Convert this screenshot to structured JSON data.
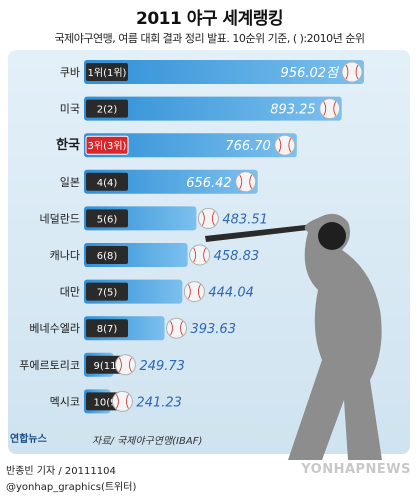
{
  "header": {
    "title": "2011 야구 세계랭킹",
    "subtitle": "국제야구연맹, 여름 대회 결과 정리 발표. 10순위 기준, ( ):2010년 순위"
  },
  "colors": {
    "bar": "#2f8fd6",
    "bar_light": "#7cc0ee",
    "rank_box": "#2a2a2a",
    "highlight_box": "#d9262a",
    "value_text": "#ffffff",
    "value_text_dark": "#2d68b3",
    "panel": "#dbeaf4"
  },
  "chart_data": {
    "type": "bar",
    "orientation": "horizontal",
    "highlight": "한국",
    "categories": [
      "쿠바",
      "미국",
      "한국",
      "일본",
      "네덜란드",
      "캐나다",
      "대만",
      "베네수엘라",
      "푸에르토리코",
      "멕시코"
    ],
    "rank_labels": [
      "1위(1위)",
      "2(2)",
      "3위(3위)",
      "4(4)",
      "5(6)",
      "6(8)",
      "7(5)",
      "8(7)",
      "9(11)",
      "10(9)"
    ],
    "values": [
      956.02,
      893.25,
      766.7,
      656.42,
      483.51,
      458.83,
      444.04,
      393.63,
      249.73,
      241.23
    ],
    "value_labels": [
      "956.02점",
      "893.25",
      "766.70",
      "656.42",
      "483.51",
      "458.83",
      "444.04",
      "393.63",
      "249.73",
      "241.23"
    ]
  },
  "footer": {
    "logo": "연합뉴스",
    "source": "자료/ 국제야구연맹(IBAF)",
    "byline": "반종빈 기자 / 20111104",
    "social": "@yonhap_graphics(트위터)",
    "watermark": "YONHAPNEWS"
  }
}
